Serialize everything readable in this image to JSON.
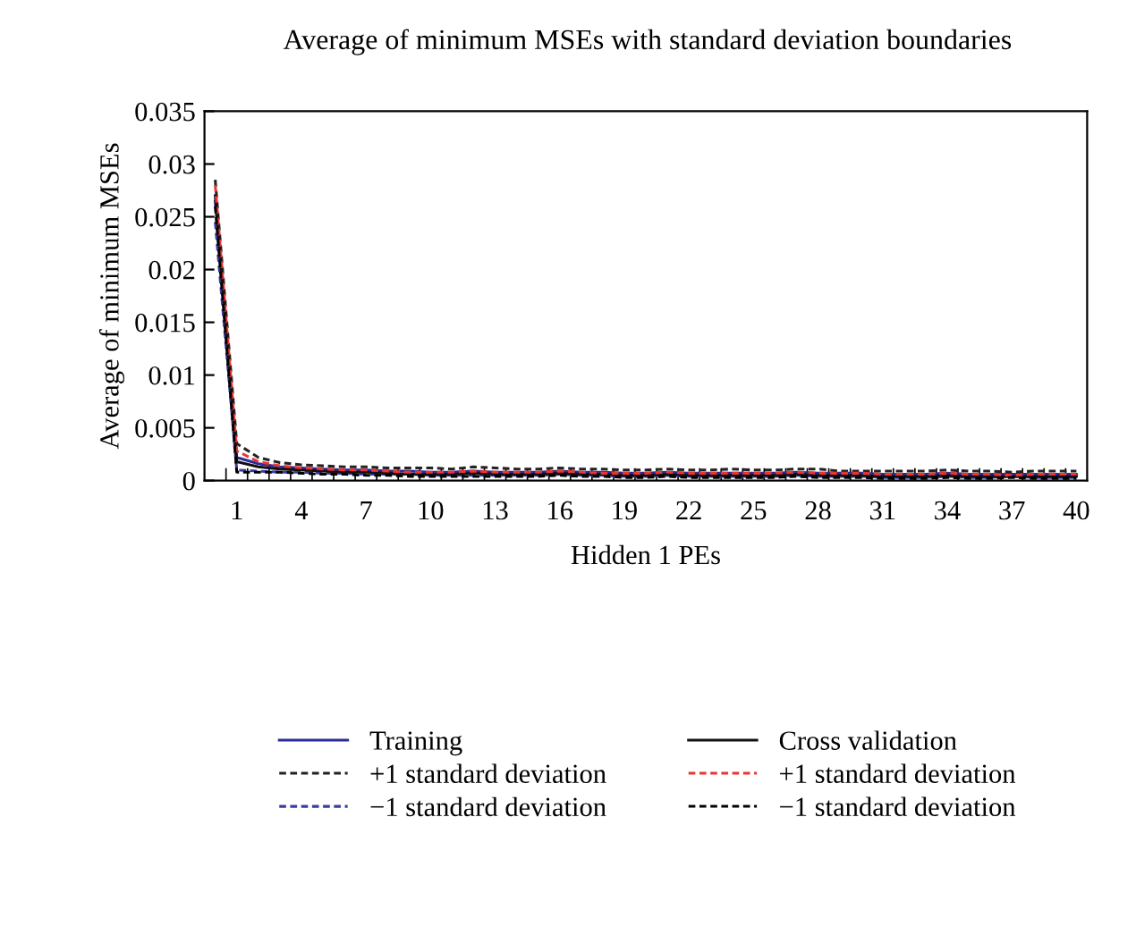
{
  "chart_data": {
    "type": "line",
    "title": "Average of minimum MSEs with standard deviation boundaries",
    "xlabel": "Hidden 1 PEs",
    "ylabel": "Average of minimum MSEs",
    "categories": [
      null,
      "1",
      null,
      null,
      "4",
      null,
      null,
      "7",
      null,
      null,
      "10",
      null,
      null,
      "13",
      null,
      null,
      "16",
      null,
      null,
      "19",
      null,
      null,
      "22",
      null,
      null,
      "25",
      null,
      null,
      "28",
      null,
      null,
      "31",
      null,
      null,
      "34",
      null,
      null,
      "37",
      null,
      null,
      "40"
    ],
    "ylim": [
      0,
      0.035
    ],
    "yticks": [
      0,
      0.005,
      0.01,
      0.015,
      0.02,
      0.025,
      0.03,
      0.035
    ],
    "grid": false,
    "legend": "bottom",
    "marker": "none",
    "series": [
      {
        "name": "Training",
        "color": "#2b2b9a",
        "line_style": "solid",
        "values": [
          0.0265,
          0.0022,
          0.0016,
          0.0013,
          0.0012,
          0.0011,
          0.001,
          0.001,
          0.0009,
          0.0009,
          0.0008,
          0.0008,
          0.0009,
          0.0008,
          0.0008,
          0.0008,
          0.0009,
          0.0008,
          0.0008,
          0.0007,
          0.0007,
          0.0008,
          0.0007,
          0.0007,
          0.0007,
          0.0007,
          0.0007,
          0.0008,
          0.0007,
          0.0007,
          0.0007,
          0.0006,
          0.0006,
          0.0006,
          0.0007,
          0.0006,
          0.0006,
          0.0006,
          0.0006,
          0.0006,
          0.0006
        ]
      },
      {
        "name": "+1 standard deviation",
        "color": "#222222",
        "line_style": "dashed",
        "values": [
          0.0285,
          0.0035,
          0.0022,
          0.0017,
          0.0015,
          0.0014,
          0.0013,
          0.0013,
          0.0012,
          0.0012,
          0.0012,
          0.0011,
          0.0013,
          0.0012,
          0.0011,
          0.0011,
          0.0012,
          0.0011,
          0.0011,
          0.001,
          0.001,
          0.0011,
          0.001,
          0.001,
          0.0011,
          0.001,
          0.001,
          0.0011,
          0.0011,
          0.0009,
          0.0009,
          0.0009,
          0.0009,
          0.0009,
          0.001,
          0.0009,
          0.0009,
          0.0008,
          0.0009,
          0.0009,
          0.0009
        ]
      },
      {
        "name": "−1 standard deviation",
        "color": "#3a3aa8",
        "line_style": "dashed",
        "values": [
          0.0245,
          0.001,
          0.0009,
          0.0008,
          0.0008,
          0.0007,
          0.0007,
          0.0006,
          0.0006,
          0.0006,
          0.0005,
          0.0005,
          0.0005,
          0.0005,
          0.0005,
          0.0005,
          0.0006,
          0.0005,
          0.0005,
          0.0004,
          0.0004,
          0.0005,
          0.0004,
          0.0004,
          0.0004,
          0.0004,
          0.0004,
          0.0005,
          0.0004,
          0.0004,
          0.0004,
          0.0003,
          0.0003,
          0.0003,
          0.0004,
          0.0003,
          0.0003,
          0.0004,
          0.0003,
          0.0003,
          0.0003
        ]
      },
      {
        "name": "Cross validation",
        "color": "#111111",
        "line_style": "solid",
        "values": [
          0.027,
          0.0018,
          0.0013,
          0.0011,
          0.001,
          0.0009,
          0.0008,
          0.0008,
          0.0007,
          0.0006,
          0.0006,
          0.0006,
          0.0007,
          0.0006,
          0.0006,
          0.0006,
          0.0007,
          0.0006,
          0.0006,
          0.0005,
          0.0005,
          0.0006,
          0.0005,
          0.0005,
          0.0005,
          0.0005,
          0.0005,
          0.0006,
          0.0005,
          0.0005,
          0.0005,
          0.0004,
          0.0004,
          0.0004,
          0.0005,
          0.0004,
          0.0004,
          0.0004,
          0.0004,
          0.0004,
          0.0004
        ]
      },
      {
        "name": "+1 standard deviation",
        "color": "#ee3333",
        "line_style": "dashed",
        "values": [
          0.028,
          0.0028,
          0.0018,
          0.0014,
          0.0012,
          0.0011,
          0.001,
          0.001,
          0.0009,
          0.0008,
          0.0008,
          0.0008,
          0.0009,
          0.0008,
          0.0008,
          0.0008,
          0.0009,
          0.0008,
          0.0007,
          0.0007,
          0.0007,
          0.0008,
          0.0007,
          0.0007,
          0.0007,
          0.0007,
          0.0007,
          0.0008,
          0.0007,
          0.0007,
          0.0007,
          0.0006,
          0.0006,
          0.0006,
          0.0007,
          0.0006,
          0.0006,
          0.0005,
          0.0006,
          0.0006,
          0.0006
        ]
      },
      {
        "name": "−1 standard deviation",
        "color": "#000000",
        "line_style": "dashed",
        "values": [
          0.026,
          0.0008,
          0.0008,
          0.0008,
          0.0007,
          0.0006,
          0.0006,
          0.0005,
          0.0005,
          0.0004,
          0.0004,
          0.0004,
          0.0004,
          0.0004,
          0.0004,
          0.0004,
          0.0005,
          0.0004,
          0.0004,
          0.0003,
          0.0003,
          0.0004,
          0.0003,
          0.0003,
          0.0003,
          0.0003,
          0.0003,
          0.0004,
          0.0003,
          0.0003,
          0.0003,
          0.0002,
          0.0002,
          0.0002,
          0.0003,
          0.0002,
          0.0002,
          0.0003,
          0.0002,
          0.0002,
          0.0002
        ]
      }
    ]
  }
}
